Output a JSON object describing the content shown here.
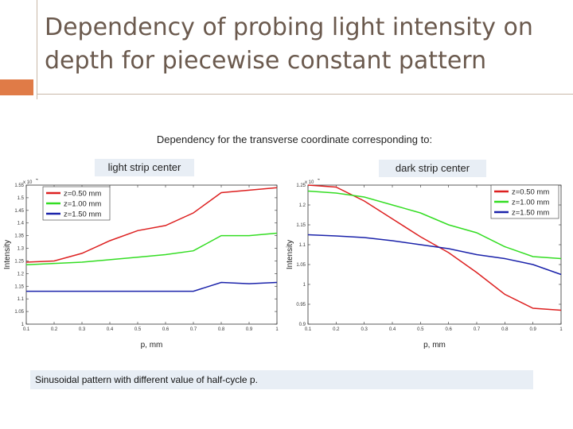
{
  "slide": {
    "title": "Dependency of probing light intensity on depth for piecewise constant pattern",
    "subtitle": "Dependency  for the transverse coordinate  corresponding to:",
    "caption": "Sinusoidal pattern with different value of half-cycle p."
  },
  "colors": {
    "title": "#6b5a4e",
    "accent": "#e07b47",
    "label_bg": "#e8eef5",
    "series": [
      "#dd2020",
      "#33dd22",
      "#1a22aa"
    ]
  },
  "chart_data": [
    {
      "type": "line",
      "label": "light strip center",
      "xlabel": "p, mm",
      "ylabel": "Intensity",
      "multiplier": "x 10",
      "exponent": "4",
      "xlim": [
        0.1,
        1.0
      ],
      "ylim": [
        1.0,
        1.55
      ],
      "xticks": [
        "0.1",
        "0.2",
        "0.3",
        "0.4",
        "0.5",
        "0.6",
        "0.7",
        "0.8",
        "0.9",
        "1"
      ],
      "yticks": [
        "1",
        "1.05",
        "1.1",
        "1.15",
        "1.2",
        "1.25",
        "1.3",
        "1.35",
        "1.4",
        "1.45",
        "1.5",
        "1.55"
      ],
      "legend_position": "top-left",
      "x": [
        0.1,
        0.2,
        0.3,
        0.4,
        0.5,
        0.6,
        0.7,
        0.8,
        0.9,
        1.0
      ],
      "series": [
        {
          "name": "z=0.50 mm",
          "values": [
            1.245,
            1.25,
            1.28,
            1.33,
            1.37,
            1.39,
            1.44,
            1.52,
            1.53,
            1.54
          ]
        },
        {
          "name": "z=1.00 mm",
          "values": [
            1.235,
            1.24,
            1.245,
            1.255,
            1.265,
            1.275,
            1.29,
            1.35,
            1.35,
            1.36
          ]
        },
        {
          "name": "z=1.50 mm",
          "values": [
            1.13,
            1.13,
            1.13,
            1.13,
            1.13,
            1.13,
            1.13,
            1.165,
            1.16,
            1.165
          ]
        }
      ]
    },
    {
      "type": "line",
      "label": "dark strip center",
      "xlabel": "p, mm",
      "ylabel": "Intensity",
      "multiplier": "x 10",
      "exponent": "4",
      "xlim": [
        0.1,
        1.0
      ],
      "ylim": [
        0.9,
        1.25
      ],
      "xticks": [
        "0.1",
        "0.2",
        "0.3",
        "0.4",
        "0.5",
        "0.6",
        "0.7",
        "0.8",
        "0.9",
        "1"
      ],
      "yticks": [
        "0.9",
        "0.95",
        "1",
        "1.05",
        "1.1",
        "1.15",
        "1.2",
        "1.25"
      ],
      "legend_position": "top-right",
      "x": [
        0.1,
        0.2,
        0.3,
        0.4,
        0.5,
        0.6,
        0.7,
        0.8,
        0.9,
        1.0
      ],
      "series": [
        {
          "name": "z=0.50 mm",
          "values": [
            1.25,
            1.245,
            1.21,
            1.165,
            1.12,
            1.08,
            1.03,
            0.975,
            0.94,
            0.935
          ]
        },
        {
          "name": "z=1.00 mm",
          "values": [
            1.235,
            1.23,
            1.22,
            1.2,
            1.18,
            1.15,
            1.13,
            1.095,
            1.07,
            1.065
          ]
        },
        {
          "name": "z=1.50 mm",
          "values": [
            1.125,
            1.122,
            1.118,
            1.11,
            1.1,
            1.09,
            1.075,
            1.065,
            1.05,
            1.025
          ]
        }
      ]
    }
  ]
}
